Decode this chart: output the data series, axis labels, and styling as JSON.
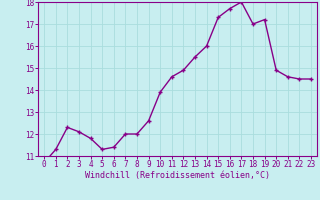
{
  "x": [
    0,
    1,
    2,
    3,
    4,
    5,
    6,
    7,
    8,
    9,
    10,
    11,
    12,
    13,
    14,
    15,
    16,
    17,
    18,
    19,
    20,
    21,
    22,
    23
  ],
  "y": [
    10.7,
    11.3,
    12.3,
    12.1,
    11.8,
    11.3,
    11.4,
    12.0,
    12.0,
    12.6,
    13.9,
    14.6,
    14.9,
    15.5,
    16.0,
    17.3,
    17.7,
    18.0,
    17.0,
    17.2,
    14.9,
    14.6,
    14.5,
    14.5
  ],
  "xlabel": "Windchill (Refroidissement éolien,°C)",
  "ylim": [
    11,
    18
  ],
  "xlim": [
    -0.5,
    23.5
  ],
  "yticks": [
    11,
    12,
    13,
    14,
    15,
    16,
    17,
    18
  ],
  "xticks": [
    0,
    1,
    2,
    3,
    4,
    5,
    6,
    7,
    8,
    9,
    10,
    11,
    12,
    13,
    14,
    15,
    16,
    17,
    18,
    19,
    20,
    21,
    22,
    23
  ],
  "line_color": "#880088",
  "marker": "+",
  "marker_size": 3.5,
  "bg_color": "#c8eef0",
  "grid_color": "#aadddd",
  "tick_color": "#880088",
  "label_color": "#880088",
  "xlabel_fontsize": 6,
  "tick_fontsize": 5.5,
  "linewidth": 1.0
}
